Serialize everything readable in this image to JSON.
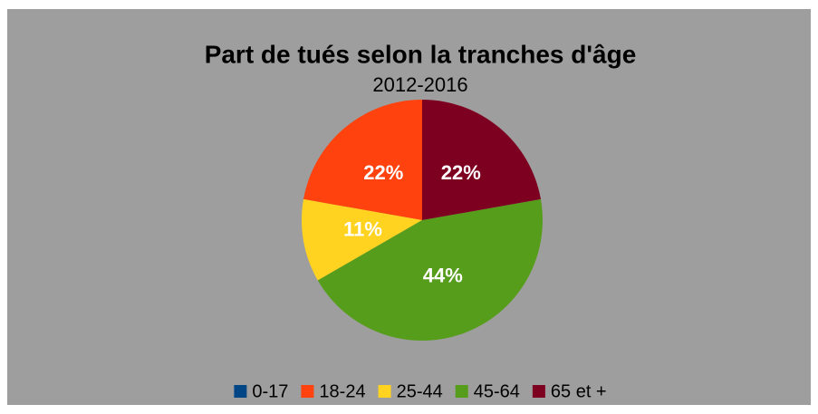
{
  "chart_data": {
    "type": "pie",
    "title": "Part de tués selon la tranches d'âge",
    "subtitle": "2012-2016",
    "categories": [
      "0-17",
      "18-24",
      "25-44",
      "45-64",
      "65 et +"
    ],
    "values": [
      0,
      22,
      11,
      44,
      22
    ],
    "value_labels": [
      null,
      "22%",
      "11%",
      "44%",
      "22%"
    ],
    "colors": [
      "#004586",
      "#ff420e",
      "#ffd320",
      "#579d1c",
      "#7e0021"
    ],
    "legend": "bottom"
  }
}
